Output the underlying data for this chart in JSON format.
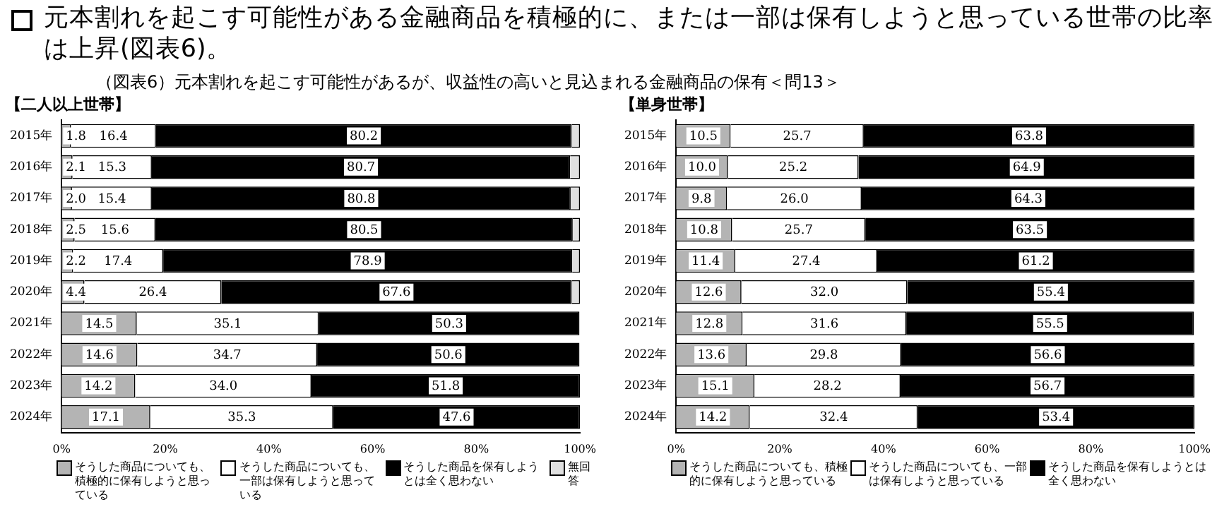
{
  "chart_data": [
    {
      "type": "bar",
      "orientation": "horizontal",
      "stacked": true,
      "title": "【二人以上世帯】",
      "annotations": [
        "元本割れを起こす可能性がある金融商品を積極的に、または一部は保有しようと思っている世帯の比率は上昇(図表6)。",
        "（図表6）元本割れを起こす可能性があるが、収益性の高いと見込まれる金融商品の保有＜問13＞"
      ],
      "categories": [
        "2015年",
        "2016年",
        "2017年",
        "2018年",
        "2019年",
        "2020年",
        "2021年",
        "2022年",
        "2023年",
        "2024年"
      ],
      "series": [
        {
          "name": "そうした商品についても、積極的に保有しようと思っている",
          "color": "#b4b4b4",
          "values": [
            1.8,
            2.1,
            2.0,
            2.5,
            2.2,
            4.4,
            14.5,
            14.6,
            14.2,
            17.1
          ],
          "value_labels": [
            "1.8",
            "2.1",
            "2.0",
            "2.5",
            "2.2",
            "4.4",
            "14.5",
            "14.6",
            "14.2",
            "17.1"
          ]
        },
        {
          "name": "そうした商品についても、一部は保有しようと思っている",
          "color": "#ffffff",
          "values": [
            16.4,
            15.3,
            15.4,
            15.6,
            17.4,
            26.4,
            35.1,
            34.7,
            34.0,
            35.3
          ],
          "value_labels": [
            "16.4",
            "15.3",
            "15.4",
            "15.6",
            "17.4",
            "26.4",
            "35.1",
            "34.7",
            "34.0",
            "35.3"
          ]
        },
        {
          "name": "そうした商品を保有しようとは全く思わない",
          "color": "#000000",
          "values": [
            80.2,
            80.7,
            80.8,
            80.5,
            78.9,
            67.6,
            50.3,
            50.6,
            51.8,
            47.6
          ],
          "value_labels": [
            "80.2",
            "80.7",
            "80.8",
            "80.5",
            "78.9",
            "67.6",
            "50.3",
            "50.6",
            "51.8",
            "47.6"
          ]
        },
        {
          "name": "無回答",
          "color": "#e0e0e0",
          "values": [
            1.6,
            1.9,
            1.8,
            1.4,
            1.5,
            1.6,
            null,
            null,
            null,
            null
          ]
        }
      ],
      "xlim": [
        0,
        100
      ],
      "xticks": [
        {
          "value": 0,
          "label": "0%"
        },
        {
          "value": 20,
          "label": "20%"
        },
        {
          "value": 40,
          "label": "40%"
        },
        {
          "value": 60,
          "label": "60%"
        },
        {
          "value": 80,
          "label": "80%"
        },
        {
          "value": 100,
          "label": "100%"
        }
      ],
      "grid": false,
      "legend": "bottom"
    },
    {
      "type": "bar",
      "orientation": "horizontal",
      "stacked": true,
      "title": "【単身世帯】",
      "categories": [
        "2015年",
        "2016年",
        "2017年",
        "2018年",
        "2019年",
        "2020年",
        "2021年",
        "2022年",
        "2023年",
        "2024年"
      ],
      "series": [
        {
          "name": "そうした商品についても、積極的に保有しようと思っている",
          "color": "#b4b4b4",
          "values": [
            10.5,
            10.0,
            9.8,
            10.8,
            11.4,
            12.6,
            12.8,
            13.6,
            15.1,
            14.2
          ],
          "value_labels": [
            "10.5",
            "10.0",
            "9.8",
            "10.8",
            "11.4",
            "12.6",
            "12.8",
            "13.6",
            "15.1",
            "14.2"
          ]
        },
        {
          "name": "そうした商品についても、一部は保有しようと思っている",
          "color": "#ffffff",
          "values": [
            25.7,
            25.2,
            26.0,
            25.7,
            27.4,
            32.0,
            31.6,
            29.8,
            28.2,
            32.4
          ],
          "value_labels": [
            "25.7",
            "25.2",
            "26.0",
            "25.7",
            "27.4",
            "32.0",
            "31.6",
            "29.8",
            "28.2",
            "32.4"
          ]
        },
        {
          "name": "そうした商品を保有しようとは全く思わない",
          "color": "#000000",
          "values": [
            63.8,
            64.9,
            64.3,
            63.5,
            61.2,
            55.4,
            55.5,
            56.6,
            56.7,
            53.4
          ],
          "value_labels": [
            "63.8",
            "64.9",
            "64.3",
            "63.5",
            "61.2",
            "55.4",
            "55.5",
            "56.6",
            "56.7",
            "53.4"
          ]
        }
      ],
      "xlim": [
        0,
        100
      ],
      "xticks": [
        {
          "value": 0,
          "label": "0%"
        },
        {
          "value": 20,
          "label": "20%"
        },
        {
          "value": 40,
          "label": "40%"
        },
        {
          "value": 60,
          "label": "60%"
        },
        {
          "value": 80,
          "label": "80%"
        },
        {
          "value": 100,
          "label": "100%"
        }
      ],
      "grid": false,
      "legend": "bottom"
    }
  ]
}
